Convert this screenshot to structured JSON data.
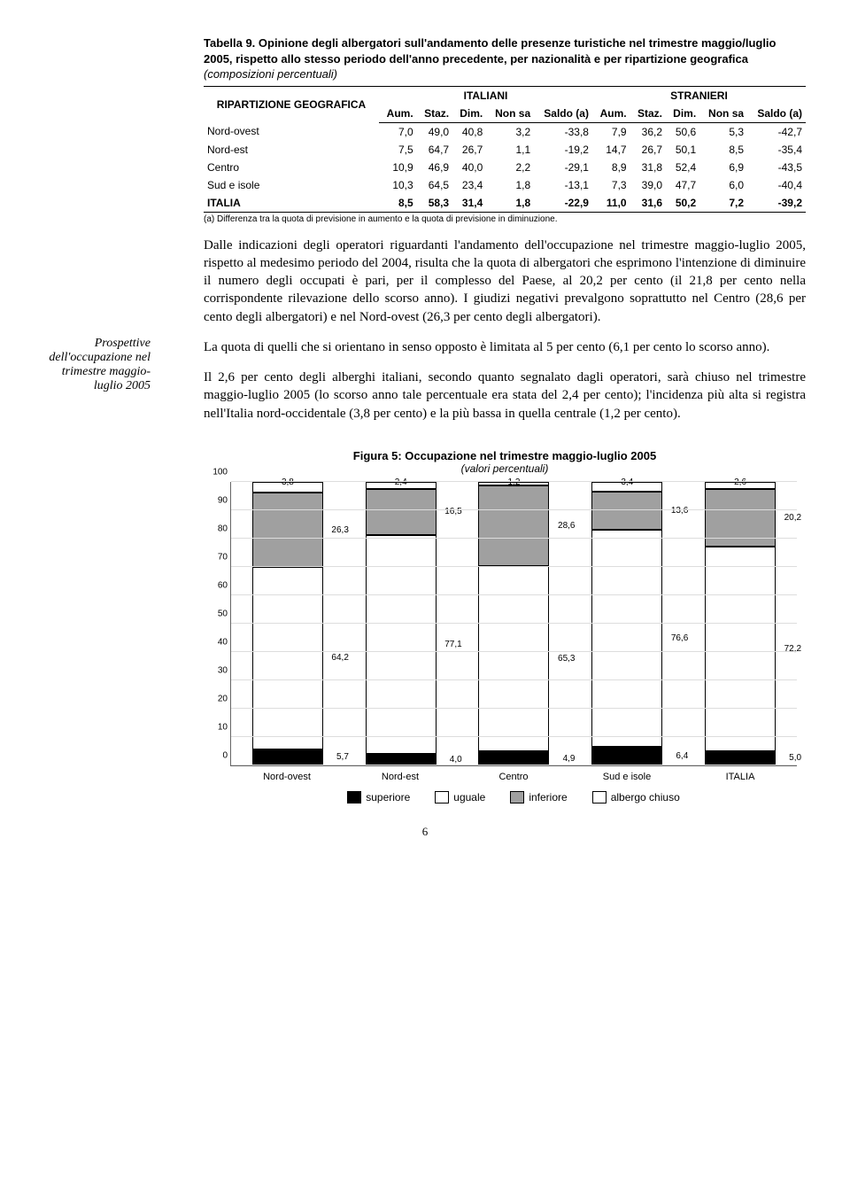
{
  "margin_note": "Prospettive dell'occupazione nel trimestre maggio-luglio 2005",
  "table": {
    "caption_strong": "Tabella 9. Opinione degli albergatori sull'andamento delle presenze turistiche nel trimestre maggio/luglio 2005, rispetto allo stesso periodo dell'anno precedente, per nazionalità e per ripartizione geografica",
    "caption_em": " (composizioni percentuali)",
    "row_label": "RIPARTIZIONE GEOGRAFICA",
    "group_headers": [
      "ITALIANI",
      "STRANIERI"
    ],
    "col_headers": [
      "Aum.",
      "Staz.",
      "Dim.",
      "Non sa",
      "Saldo (a)",
      "Aum.",
      "Staz.",
      "Dim.",
      "Non sa",
      "Saldo (a)"
    ],
    "rows": [
      {
        "label": "Nord-ovest",
        "vals": [
          "7,0",
          "49,0",
          "40,8",
          "3,2",
          "-33,8",
          "7,9",
          "36,2",
          "50,6",
          "5,3",
          "-42,7"
        ]
      },
      {
        "label": "Nord-est",
        "vals": [
          "7,5",
          "64,7",
          "26,7",
          "1,1",
          "-19,2",
          "14,7",
          "26,7",
          "50,1",
          "8,5",
          "-35,4"
        ]
      },
      {
        "label": "Centro",
        "vals": [
          "10,9",
          "46,9",
          "40,0",
          "2,2",
          "-29,1",
          "8,9",
          "31,8",
          "52,4",
          "6,9",
          "-43,5"
        ]
      },
      {
        "label": "Sud e isole",
        "vals": [
          "10,3",
          "64,5",
          "23,4",
          "1,8",
          "-13,1",
          "7,3",
          "39,0",
          "47,7",
          "6,0",
          "-40,4"
        ]
      },
      {
        "label": "ITALIA",
        "vals": [
          "8,5",
          "58,3",
          "31,4",
          "1,8",
          "-22,9",
          "11,0",
          "31,6",
          "50,2",
          "7,2",
          "-39,2"
        ],
        "bold": true
      }
    ],
    "footnote": "(a) Differenza tra la quota di previsione in aumento e la quota di previsione in diminuzione."
  },
  "paragraphs": [
    "Dalle indicazioni degli operatori riguardanti l'andamento dell'occupazione nel trimestre maggio-luglio 2005, rispetto al medesimo periodo del 2004, risulta che la quota di albergatori che esprimono l'intenzione di diminuire il numero degli occupati è pari, per il complesso del Paese, al 20,2 per cento (il 21,8 per cento nella corrispondente rilevazione dello scorso anno). I giudizi negativi prevalgono soprattutto nel Centro (28,6 per cento degli albergatori) e nel Nord-ovest (26,3 per cento degli albergatori).",
    "La quota di quelli che si orientano in senso opposto è limitata al 5 per cento (6,1 per cento lo scorso anno).",
    "Il 2,6 per cento degli alberghi italiani, secondo quanto segnalato dagli operatori, sarà chiuso nel trimestre maggio-luglio 2005 (lo scorso anno tale percentuale era stata del 2,4 per cento); l'incidenza più alta si registra nell'Italia nord-occidentale (3,8 per cento) e la più bassa in quella centrale (1,2 per cento)."
  ],
  "chart": {
    "title": "Figura 5: Occupazione nel trimestre maggio-luglio 2005",
    "subtitle": "(valori percentuali)",
    "y_max": 100,
    "y_tick": 10,
    "categories": [
      "Nord-ovest",
      "Nord-est",
      "Centro",
      "Sud e isole",
      "ITALIA"
    ],
    "series": [
      {
        "name": "superiore",
        "color": "#000000",
        "values": [
          5.7,
          4.0,
          4.9,
          6.4,
          5.0
        ]
      },
      {
        "name": "uguale",
        "color": "#ffffff",
        "values": [
          64.2,
          77.1,
          65.3,
          76.6,
          72.2
        ]
      },
      {
        "name": "inferiore",
        "color": "#a0a0a0",
        "values": [
          26.3,
          16.5,
          28.6,
          13.6,
          20.2
        ]
      },
      {
        "name": "albergo chiuso",
        "color": "#ffffff",
        "values": [
          3.8,
          2.4,
          1.2,
          3.4,
          2.6
        ],
        "pattern": true
      }
    ],
    "value_labels": {
      "Nord-ovest": [
        "5,7",
        "64,2",
        "26,3",
        "3,8"
      ],
      "Nord-est": [
        "4,0",
        "77,1",
        "16,5",
        "2,4"
      ],
      "Centro": [
        "4,9",
        "65,3",
        "28,6",
        "1,2"
      ],
      "Sud e isole": [
        "6,4",
        "76,6",
        "13,6",
        "3,4"
      ],
      "ITALIA": [
        "5,0",
        "72,2",
        "20,2",
        "2,6"
      ]
    },
    "legend": [
      "superiore",
      "uguale",
      "inferiore",
      "albergo chiuso"
    ],
    "legend_colors": [
      "#000000",
      "#ffffff",
      "#a0a0a0",
      "#ffffff"
    ]
  },
  "page_number": "6"
}
